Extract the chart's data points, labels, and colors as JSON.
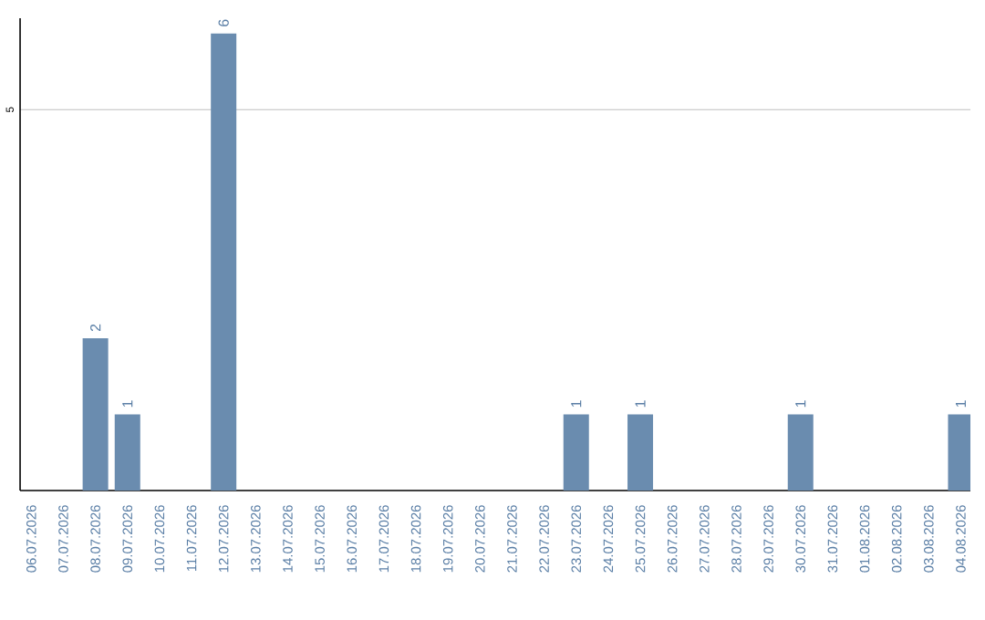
{
  "chart_data": {
    "type": "bar",
    "categories": [
      "06.07.2026",
      "07.07.2026",
      "08.07.2026",
      "09.07.2026",
      "10.07.2026",
      "11.07.2026",
      "12.07.2026",
      "13.07.2026",
      "14.07.2026",
      "15.07.2026",
      "16.07.2026",
      "17.07.2026",
      "18.07.2026",
      "19.07.2026",
      "20.07.2026",
      "21.07.2026",
      "22.07.2026",
      "23.07.2026",
      "24.07.2026",
      "25.07.2026",
      "26.07.2026",
      "27.07.2026",
      "28.07.2026",
      "29.07.2026",
      "30.07.2026",
      "31.07.2026",
      "01.08.2026",
      "02.08.2026",
      "03.08.2026",
      "04.08.2026"
    ],
    "values": [
      null,
      null,
      2,
      1,
      null,
      null,
      6,
      null,
      null,
      null,
      null,
      null,
      null,
      null,
      null,
      null,
      null,
      1,
      null,
      1,
      null,
      null,
      null,
      null,
      1,
      null,
      null,
      null,
      null,
      1
    ],
    "color": "#6a8caf",
    "ylim": [
      0,
      6.2
    ],
    "yticks": [
      5
    ],
    "grid": "y",
    "data_labels": true
  }
}
